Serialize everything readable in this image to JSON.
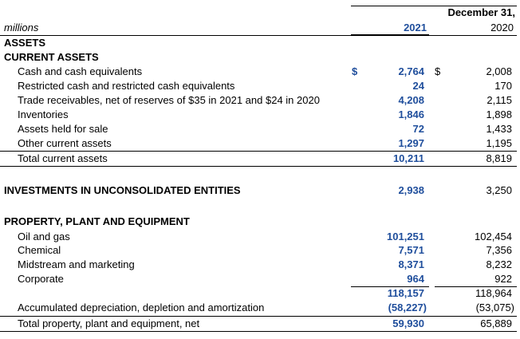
{
  "header": {
    "units_label": "millions",
    "period_label": "December 31,",
    "col_2021": "2021",
    "col_2020": "2020"
  },
  "sections": {
    "assets": "ASSETS",
    "current_assets": "CURRENT ASSETS",
    "investments": "INVESTMENTS IN UNCONSOLIDATED ENTITIES",
    "ppe": "PROPERTY, PLANT AND EQUIPMENT"
  },
  "current_assets": [
    {
      "label": "Cash and cash equivalents",
      "cur": "$",
      "v2021": "2,764",
      "cur2": "$",
      "v2020": "2,008"
    },
    {
      "label": "Restricted cash and restricted cash equivalents",
      "v2021": "24",
      "v2020": "170"
    },
    {
      "label": "Trade receivables, net of reserves of $35 in 2021 and $24 in 2020",
      "v2021": "4,208",
      "v2020": "2,115"
    },
    {
      "label": "Inventories",
      "v2021": "1,846",
      "v2020": "1,898"
    },
    {
      "label": "Assets held for sale",
      "v2021": "72",
      "v2020": "1,433"
    },
    {
      "label": "Other current assets",
      "v2021": "1,297",
      "v2020": "1,195"
    },
    {
      "label": "Total current assets",
      "v2021": "10,211",
      "v2020": "8,819"
    }
  ],
  "investments": {
    "v2021": "2,938",
    "v2020": "3,250"
  },
  "ppe_items": [
    {
      "label": "Oil and gas",
      "v2021": "101,251",
      "v2020": "102,454"
    },
    {
      "label": "Chemical",
      "v2021": "7,571",
      "v2020": "7,356"
    },
    {
      "label": "Midstream and marketing",
      "v2021": "8,371",
      "v2020": "8,232"
    },
    {
      "label": "Corporate",
      "v2021": "964",
      "v2020": "922"
    },
    {
      "label": "",
      "v2021": "118,157",
      "v2020": "118,964"
    },
    {
      "label": "Accumulated depreciation, depletion and amortization",
      "v2021": "(58,227)",
      "v2020": "(53,075)"
    },
    {
      "label": "Total property, plant and equipment, net",
      "v2021": "59,930",
      "v2020": "65,889"
    }
  ],
  "colors": {
    "accent_blue": "#1f4e9c"
  }
}
